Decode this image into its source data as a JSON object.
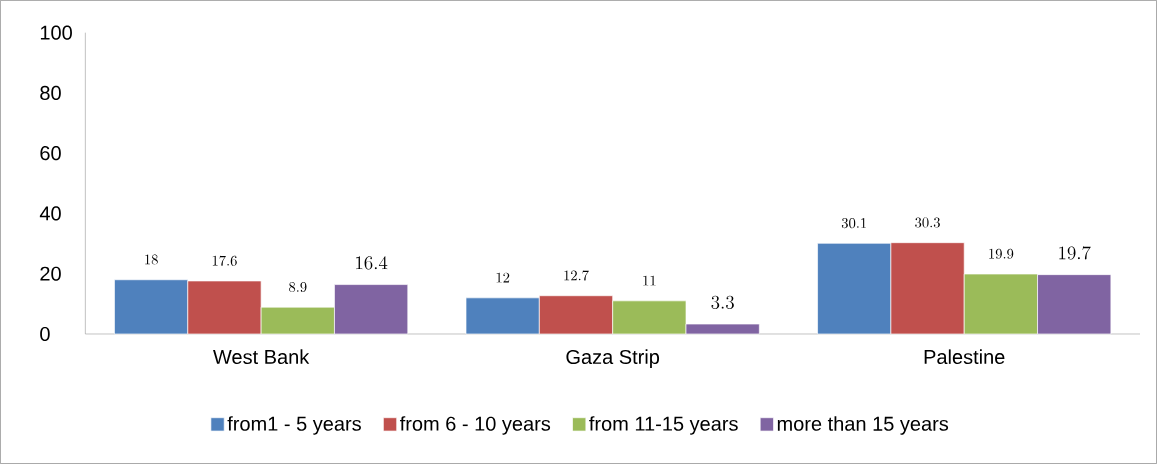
{
  "chart_data": {
    "type": "bar",
    "categories": [
      "West Bank",
      "Gaza Strip",
      "Palestine"
    ],
    "series": [
      {
        "name": "from1 - 5 years",
        "color": "#4f81bd",
        "values": [
          18,
          12,
          30.1
        ]
      },
      {
        "name": "from 6 - 10 years",
        "color": "#c0504d",
        "values": [
          17.6,
          12.7,
          30.3
        ]
      },
      {
        "name": "from 11-15 years",
        "color": "#9bbb59",
        "values": [
          8.9,
          11,
          19.9
        ]
      },
      {
        "name": "more than 15 years",
        "color": "#8064a2",
        "values": [
          16.4,
          3.3,
          19.7
        ]
      }
    ],
    "ylim": [
      0,
      100
    ],
    "yticks": [
      0,
      20,
      40,
      60,
      80,
      100
    ],
    "grid": false,
    "legend": "bottom",
    "data_labels": true
  }
}
